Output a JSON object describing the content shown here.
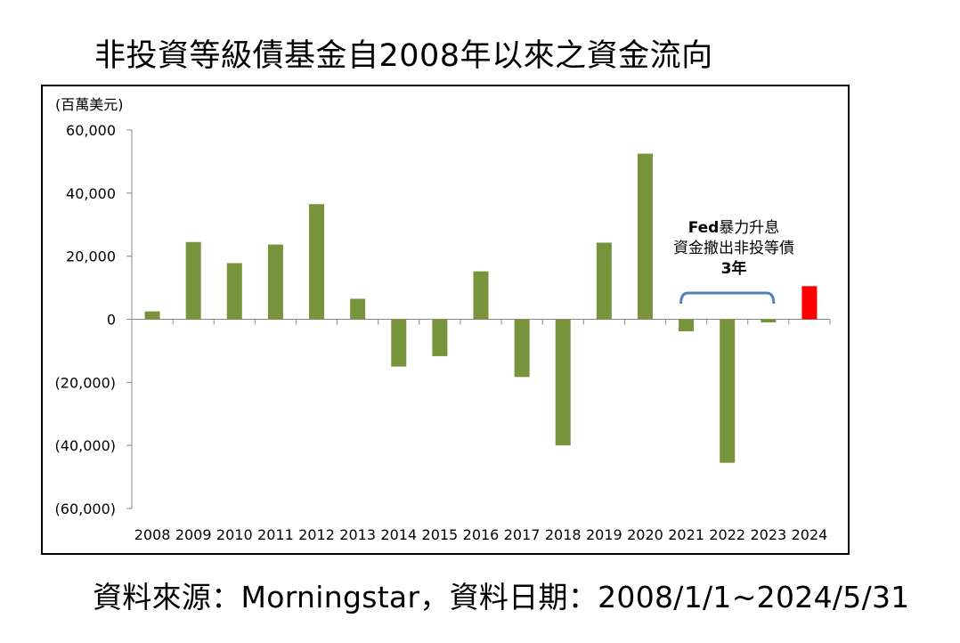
{
  "title": "非投資等級債基金自2008年以來之資金流向",
  "source": "資料來源：Morningstar，資料日期：2008/1/1~2024/5/31",
  "annotation": {
    "line1_bold": "Fed",
    "line1_rest": "暴力升息",
    "line2": "資金撤出非投等債",
    "line3_bold": "3",
    "line3_rest": "年"
  },
  "colors": {
    "bar": "#77933c",
    "highlight": "#ff0000",
    "bracket": "#4f81bd"
  },
  "chart_data": {
    "type": "bar",
    "unit_label": "(百萬美元)",
    "categories": [
      "2008",
      "2009",
      "2010",
      "2011",
      "2012",
      "2013",
      "2014",
      "2015",
      "2016",
      "2017",
      "2018",
      "2019",
      "2020",
      "2021",
      "2022",
      "2023",
      "2024"
    ],
    "values": [
      2500,
      24500,
      17800,
      23700,
      36500,
      6500,
      -15000,
      -11700,
      15200,
      -18300,
      -40000,
      24300,
      52500,
      -3800,
      -45500,
      -1000,
      10500
    ],
    "highlight_category": "2024",
    "ylim": [
      -60000,
      60000
    ],
    "yticks": [
      60000,
      40000,
      20000,
      0,
      -20000,
      -40000,
      -60000
    ],
    "ytick_labels": [
      "60,000",
      "40,000",
      "20,000",
      "0",
      "(20,000)",
      "(40,000)",
      "(60,000)"
    ],
    "grid": false,
    "legend": "none"
  }
}
